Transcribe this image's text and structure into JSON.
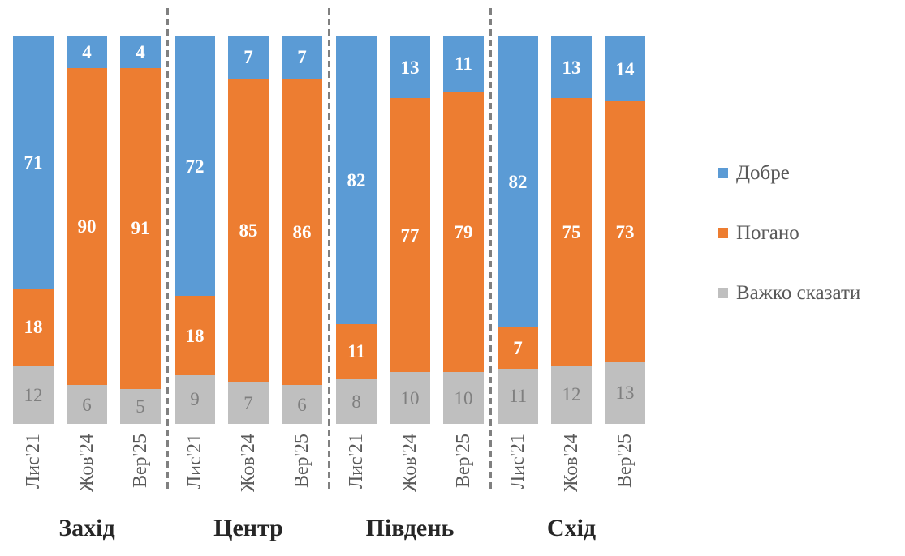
{
  "chart_data": {
    "type": "bar",
    "stacked": true,
    "unit": "percent",
    "grid": false,
    "axes_visible": false,
    "legend_position": "right",
    "group_labels": [
      "Захід",
      "Центр",
      "Південь",
      "Схід"
    ],
    "categories_per_group": [
      "Лис'21",
      "Жов'24",
      "Вер'25"
    ],
    "stack_order_top_to_bottom": [
      "Добре",
      "Погано",
      "Важко сказати"
    ],
    "series": [
      {
        "name": "Добре",
        "color": "#5B9BD5",
        "label_color": "#FFFFFF",
        "label_bold": true,
        "values": {
          "Захід": [
            71,
            4,
            4
          ],
          "Центр": [
            72,
            7,
            7
          ],
          "Південь": [
            82,
            13,
            11
          ],
          "Схід": [
            82,
            13,
            14
          ]
        }
      },
      {
        "name": "Погано",
        "color": "#ED7D31",
        "label_color": "#FFFFFF",
        "label_bold": true,
        "values": {
          "Захід": [
            18,
            90,
            91
          ],
          "Центр": [
            18,
            85,
            86
          ],
          "Південь": [
            11,
            77,
            79
          ],
          "Схід": [
            7,
            75,
            73
          ]
        }
      },
      {
        "name": "Важко сказати",
        "color": "#BFBFBF",
        "label_color": "#7F7F7F",
        "label_bold": false,
        "values": {
          "Захід": [
            12,
            6,
            5
          ],
          "Центр": [
            9,
            7,
            6
          ],
          "Південь": [
            8,
            10,
            10
          ],
          "Схід": [
            11,
            12,
            13
          ]
        }
      }
    ],
    "separator_line_color": "#808080",
    "tick_label_color": "#595959",
    "group_label_color": "#262626",
    "legend_text_color": "#595959",
    "background_color": "#FFFFFF"
  }
}
